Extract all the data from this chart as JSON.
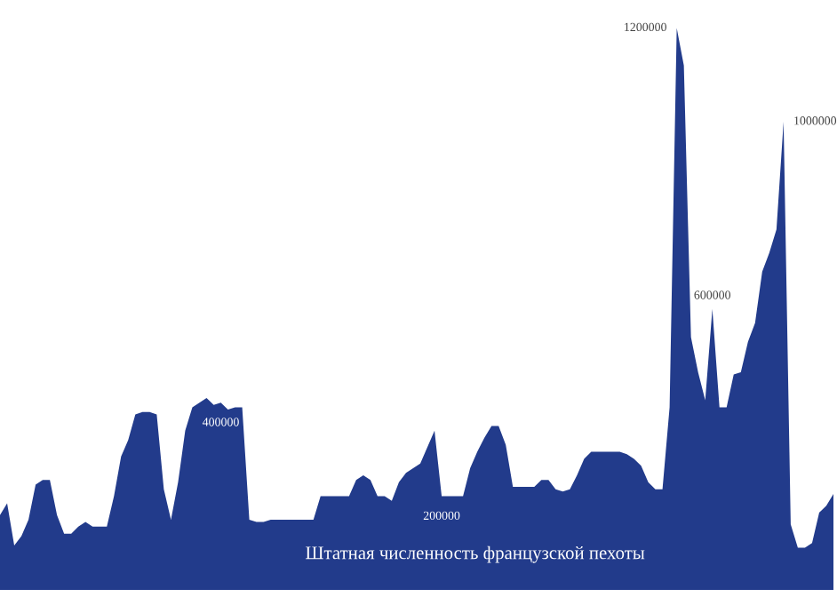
{
  "chart_data": {
    "type": "area",
    "title": "Штатная численность французской пехоты",
    "categories": [
      null,
      null,
      null,
      null,
      null,
      null,
      null,
      null,
      null,
      null,
      null,
      null,
      null,
      null,
      null,
      null,
      null,
      null,
      null,
      null,
      null,
      null,
      null,
      null,
      null,
      null,
      null,
      null,
      null,
      null,
      null,
      null,
      null,
      null,
      null,
      null,
      null,
      null,
      null,
      null,
      null,
      null,
      null,
      null,
      null,
      null,
      null,
      null,
      null,
      null,
      null,
      null,
      null,
      null,
      null,
      null,
      null,
      null,
      null,
      null,
      null,
      null,
      null,
      null,
      null,
      null,
      null,
      null,
      null,
      null,
      null,
      null,
      null,
      null,
      null,
      null,
      null,
      null,
      null,
      null,
      null,
      null,
      null,
      null,
      null,
      null,
      null,
      null,
      null,
      null,
      null,
      null,
      null,
      null,
      null,
      null,
      null,
      null,
      null,
      null,
      null,
      null,
      null,
      null,
      null,
      null,
      null,
      null,
      null,
      null,
      null,
      null,
      null,
      null,
      null,
      null,
      null,
      null
    ],
    "series": [
      {
        "color": "#223b8b",
        "values": [
          160000,
          185000,
          95000,
          115000,
          150000,
          225000,
          235000,
          235000,
          160000,
          120000,
          120000,
          135000,
          145000,
          135000,
          135000,
          135000,
          200000,
          285000,
          320000,
          375000,
          380000,
          380000,
          375000,
          215000,
          150000,
          230000,
          340000,
          390000,
          400000,
          410000,
          395000,
          400000,
          385000,
          390000,
          390000,
          150000,
          145000,
          145000,
          150000,
          150000,
          150000,
          150000,
          150000,
          150000,
          150000,
          200000,
          200000,
          200000,
          200000,
          200000,
          235000,
          245000,
          235000,
          200000,
          200000,
          190000,
          230000,
          250000,
          260000,
          270000,
          305000,
          340000,
          200000,
          200000,
          200000,
          200000,
          260000,
          295000,
          325000,
          350000,
          350000,
          310000,
          220000,
          220000,
          220000,
          220000,
          235000,
          235000,
          215000,
          210000,
          215000,
          245000,
          280000,
          295000,
          295000,
          295000,
          295000,
          295000,
          290000,
          280000,
          265000,
          230000,
          215000,
          215000,
          390000,
          1200000,
          1120000,
          540000,
          465000,
          405000,
          600000,
          390000,
          390000,
          460000,
          465000,
          530000,
          570000,
          680000,
          720000,
          770000,
          1000000,
          140000,
          90000,
          90000,
          100000,
          165000,
          180000,
          205000
        ],
        "value_labels": [
          null,
          null,
          null,
          null,
          null,
          null,
          null,
          null,
          null,
          null,
          null,
          null,
          null,
          null,
          null,
          null,
          null,
          null,
          null,
          null,
          null,
          null,
          null,
          null,
          null,
          null,
          null,
          null,
          null,
          null,
          null,
          "400000",
          null,
          null,
          null,
          null,
          null,
          null,
          null,
          null,
          null,
          null,
          null,
          null,
          null,
          null,
          null,
          null,
          null,
          null,
          null,
          null,
          null,
          null,
          null,
          null,
          null,
          null,
          null,
          null,
          null,
          null,
          "200000",
          null,
          null,
          null,
          null,
          null,
          null,
          null,
          null,
          null,
          null,
          null,
          null,
          null,
          null,
          null,
          null,
          null,
          null,
          null,
          null,
          null,
          null,
          null,
          null,
          null,
          null,
          null,
          null,
          null,
          null,
          null,
          null,
          "1200000",
          null,
          null,
          null,
          null,
          "600000",
          null,
          null,
          null,
          null,
          null,
          null,
          null,
          null,
          null,
          "1000000",
          null,
          null,
          null,
          null,
          null,
          null,
          null
        ]
      }
    ]
  }
}
